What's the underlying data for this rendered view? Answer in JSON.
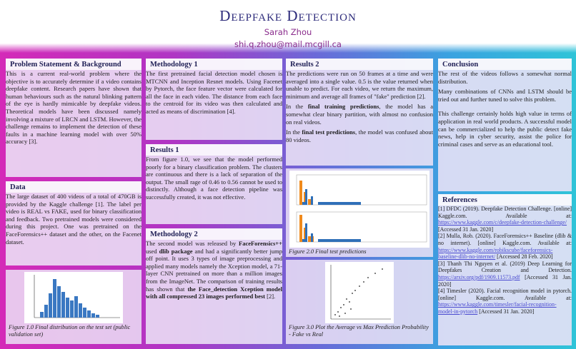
{
  "header": {
    "title": "Deepfake Detection",
    "author": "Sarah Zhou",
    "email": "shi.q.zhou@mail.mcgill.ca"
  },
  "sections": [
    {
      "heading": "Problem Statement & Background",
      "paragraphs": [
        [
          "This is a current real-world problem where the objective is to accurately determine if a video contains deepfake content. Research papers have shown that human behaviours such as the natural blinking pattern of the eye is hardly mimicable by deepfake videos. Theoretical models have been discussed namely involving a mixture of LRCN and LSTM. However, the challenge remains to implement the detection of these faults in a machine learning model with over 50% accuracy [3]."
        ]
      ]
    },
    {
      "heading": "Data",
      "paragraphs": [
        [
          "The large dataset of 400 videos of a total of 470GB is provided by the Kaggle challenge [1]. The label per video is REAL vs FAKE, used for binary classification and feedback. Two pretrained models were considered during this project. One was pretrained on the FaceForensics++ dataset and the other, on the Facenet dataset."
        ]
      ]
    },
    {
      "heading": "Methodology 1",
      "paragraphs": [
        [
          "The first pretrained facial detection model chosen is MTCNN and Inception Resnet models. Using Facenet by Pytorch, the face feature vector were calculated for all the face in each video. The distance from each face to the centroid for its video was then calculated and acted as means of discrimination [4]."
        ]
      ]
    },
    {
      "heading": "Results 1",
      "paragraphs": [
        [
          "From figure 1.0, we see that the model performed poorly for a binary classification problem. The clusters are continuous and there is a lack of separation of the output. The small rage of 0.46 to 0.56 cannot be used to distinctly. Although a face detection pipeline was successfully created, it was not effective."
        ]
      ]
    },
    {
      "heading": "Methodology 2",
      "paragraphs": [
        [
          "The second model was released by ",
          {
            "bold": "FaceForensics++"
          },
          " used ",
          {
            "bold": "dlib package"
          },
          " and had a significantly better jump off point. It uses 3 types of image preprocessing and applied many models namely the Xception model, a 71-layer CNN pretrained on more than a million images from the ImageNet. The comparison of training results has shown that ",
          {
            "bold": "the Face_detection Xception model with all compressed 23 images performed best"
          },
          " [2]."
        ]
      ]
    },
    {
      "heading": "Results 2",
      "paragraphs": [
        [
          "The predictions were run on 50 frames at a time and were averaged into a single value. 0.5 is the value returned when unable to predict. For each video, we return the maximum, minimum and average all frames of \"fake\" prediction [2]."
        ],
        [
          "In the ",
          {
            "bold": "final training predictions"
          },
          ", the model has a somewhat clear binary partition, with almost no confusion on real videos."
        ],
        [
          "In the ",
          {
            "bold": "final test predictions"
          },
          ", the model was confused about 80 videos."
        ]
      ]
    },
    {
      "heading": "Conclusion",
      "paragraphs": [
        [
          "The rest of the videos follows a somewhat normal distribution."
        ],
        [
          "Many combinations of CNNs and LSTM should be tried out and further tuned to solve this problem."
        ],
        [
          "This challenge certainly holds high value in terms of application in real world products. A successful model can be commercialized to help the public detect fake news, help in cyber security, assist the police for criminal cases and serve as an educational tool."
        ]
      ]
    },
    {
      "heading": "References",
      "paragraphs": [
        [
          "[1] DFDC (2019). Deepfake Detection Challenge. [online] Kaggle.com. Available at: ",
          {
            "link": "https://www.kaggle.com/c/deepfake-detection-challenge/"
          },
          " [Accessed 31 Jan. 2020]"
        ],
        [
          "[2] Mulla, Rob. (2020). FaceForensics++ Baseline (dlib & no internet). [online] Kaggle.com. Available at: ",
          {
            "link": "https://www.kaggle.com/robikscube/faceforensics-baseline-dlib-no-internet/"
          },
          " [Accessed 28 Feb. 2020]"
        ],
        [
          "[3] Thanh Thi Nguyen et al. (2019) Deep Learning for Deepfakes Creation and Detection. ",
          {
            "link": "https://arxiv.org/pdf/1909.11573.pdf"
          },
          " [Accessed 31 Jan. 2020]"
        ],
        [
          "[4] Timesler (2020). Facial recognition model in pytorch. [online] Kaggle.com. Available at: ",
          {
            "link": "https://www.kaggle.com/timesler/facial-recognition-model-in-pytorch"
          },
          " [Accessed 31 Jan. 2020]"
        ]
      ]
    }
  ],
  "figures": [
    {
      "caption": "Figure 1.0 Final distribution on the test set (public validation set)"
    },
    {
      "caption": "Figure 2.0 Final test predictions"
    },
    {
      "caption": "Figure 3.0 Plot the Average vs Max Prediction Probability - Fake vs Real"
    }
  ]
}
